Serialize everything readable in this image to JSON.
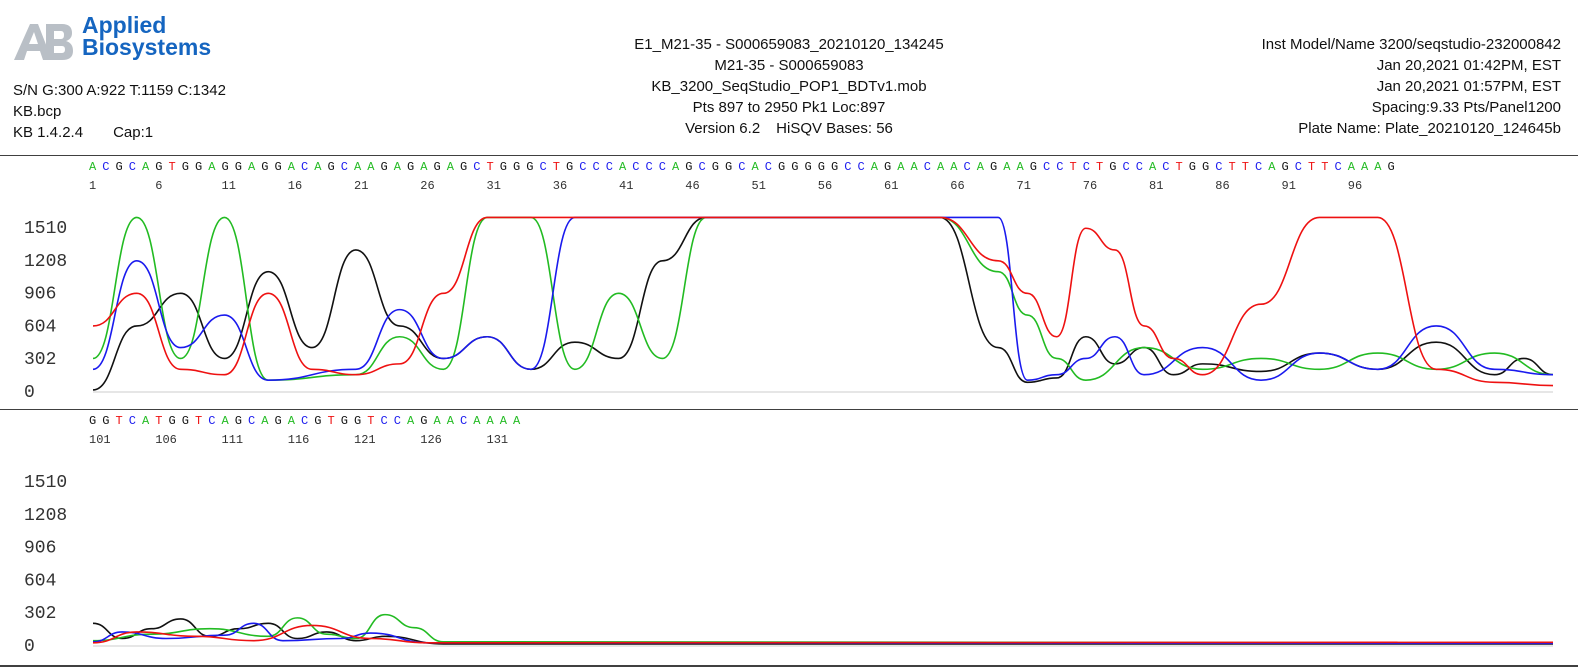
{
  "header": {
    "logo_text_1": "Applied",
    "logo_text_2": "Biosystems",
    "brand_color": "#1565c0",
    "left": {
      "counts": "S/N G:300 A:922 T:1159 C:1342",
      "file": "KB.bcp",
      "kb_version": "KB 1.4.2.4",
      "cap": "Cap:1"
    },
    "center": {
      "line1": "E1_M21-35 - S000659083_20210120_134245",
      "line2": "M21-35 - S000659083",
      "line3": "KB_3200_SeqStudio_POP1_BDTv1.mob",
      "line4": "Pts 897 to 2950 Pk1 Loc:897",
      "version": "Version 6.2",
      "hisqv": "HiSQV Bases: 56"
    },
    "right": {
      "line1": "Inst Model/Name 3200/seqstudio-232000842",
      "line2": "Jan 20,2021 01:42PM, EST",
      "line3": "Jan 20,2021 01:57PM, EST",
      "line4": "Spacing:9.33  Pts/Panel1200",
      "line5": "Plate Name: Plate_20210120_124645b"
    }
  },
  "chart_data": {
    "type": "line",
    "base_colors": {
      "A": "#22bb22",
      "C": "#1a1aee",
      "G": "#111111",
      "T": "#ee1111"
    },
    "y_ticks": [
      0,
      302,
      604,
      906,
      1208,
      1510
    ],
    "panels": [
      {
        "sequence": "ACGCAGTGGAGGAGGACAGCAAGAGAGAGCTGGGCTGCCCACCCAGCGGCACGGGGGCCAGAACAACAGAAGCCTCTGCCACTGGCTTCAGCTTCAAAG",
        "tick_labels": [
          "1",
          "6",
          "11",
          "16",
          "21",
          "26",
          "31",
          "36",
          "41",
          "46",
          "51",
          "56",
          "61",
          "66",
          "71",
          "76",
          "81",
          "86",
          "91",
          "96"
        ],
        "series": [
          {
            "base": "G",
            "points": [
              [
                0,
                10
              ],
              [
                3,
                600
              ],
              [
                6,
                900
              ],
              [
                9,
                300
              ],
              [
                12,
                1100
              ],
              [
                15,
                400
              ],
              [
                18,
                1300
              ],
              [
                21,
                600
              ],
              [
                24,
                300
              ],
              [
                27,
                500
              ],
              [
                30,
                200
              ],
              [
                33,
                450
              ],
              [
                36,
                300
              ],
              [
                39,
                1200
              ],
              [
                42,
                1600
              ],
              [
                45,
                1600
              ],
              [
                58,
                1600
              ],
              [
                62,
                400
              ],
              [
                64,
                80
              ],
              [
                66,
                120
              ],
              [
                68,
                500
              ],
              [
                70,
                250
              ],
              [
                72,
                400
              ],
              [
                74,
                150
              ],
              [
                76,
                250
              ],
              [
                80,
                180
              ],
              [
                84,
                350
              ],
              [
                88,
                200
              ],
              [
                92,
                450
              ],
              [
                96,
                150
              ],
              [
                98,
                300
              ],
              [
                100,
                150
              ]
            ]
          },
          {
            "base": "A",
            "points": [
              [
                0,
                300
              ],
              [
                3,
                1600
              ],
              [
                6,
                300
              ],
              [
                9,
                1600
              ],
              [
                12,
                100
              ],
              [
                18,
                150
              ],
              [
                21,
                500
              ],
              [
                24,
                200
              ],
              [
                27,
                1600
              ],
              [
                30,
                1600
              ],
              [
                33,
                200
              ],
              [
                36,
                900
              ],
              [
                39,
                300
              ],
              [
                42,
                1600
              ],
              [
                45,
                1600
              ],
              [
                58,
                1600
              ],
              [
                62,
                1100
              ],
              [
                64,
                700
              ],
              [
                66,
                300
              ],
              [
                68,
                100
              ],
              [
                72,
                400
              ],
              [
                76,
                200
              ],
              [
                80,
                300
              ],
              [
                84,
                200
              ],
              [
                88,
                350
              ],
              [
                92,
                200
              ],
              [
                96,
                350
              ],
              [
                100,
                150
              ]
            ]
          },
          {
            "base": "C",
            "points": [
              [
                0,
                200
              ],
              [
                3,
                1200
              ],
              [
                6,
                400
              ],
              [
                9,
                700
              ],
              [
                12,
                100
              ],
              [
                18,
                200
              ],
              [
                21,
                750
              ],
              [
                24,
                300
              ],
              [
                27,
                500
              ],
              [
                30,
                200
              ],
              [
                33,
                1600
              ],
              [
                36,
                1600
              ],
              [
                42,
                1600
              ],
              [
                45,
                1600
              ],
              [
                62,
                1600
              ],
              [
                64,
                100
              ],
              [
                66,
                150
              ],
              [
                68,
                300
              ],
              [
                70,
                500
              ],
              [
                72,
                150
              ],
              [
                76,
                400
              ],
              [
                80,
                100
              ],
              [
                84,
                350
              ],
              [
                88,
                200
              ],
              [
                92,
                600
              ],
              [
                96,
                200
              ],
              [
                100,
                150
              ]
            ]
          },
          {
            "base": "T",
            "points": [
              [
                0,
                600
              ],
              [
                3,
                900
              ],
              [
                6,
                200
              ],
              [
                9,
                150
              ],
              [
                12,
                900
              ],
              [
                15,
                200
              ],
              [
                18,
                150
              ],
              [
                21,
                250
              ],
              [
                24,
                900
              ],
              [
                27,
                1600
              ],
              [
                30,
                1600
              ],
              [
                36,
                1600
              ],
              [
                42,
                1600
              ],
              [
                45,
                1600
              ],
              [
                58,
                1600
              ],
              [
                62,
                1200
              ],
              [
                64,
                900
              ],
              [
                66,
                500
              ],
              [
                68,
                1500
              ],
              [
                70,
                1300
              ],
              [
                72,
                600
              ],
              [
                74,
                300
              ],
              [
                76,
                150
              ],
              [
                80,
                800
              ],
              [
                84,
                1600
              ],
              [
                88,
                1600
              ],
              [
                92,
                200
              ],
              [
                96,
                80
              ],
              [
                100,
                50
              ]
            ]
          }
        ]
      },
      {
        "sequence": "GGTCATGGTCAGCAGACGTGGTCCAGAACAAAA",
        "tick_labels": [
          "101",
          "106",
          "111",
          "116",
          "121",
          "126",
          "131"
        ],
        "series": [
          {
            "base": "G",
            "points": [
              [
                0,
                200
              ],
              [
                2,
                60
              ],
              [
                4,
                150
              ],
              [
                6,
                240
              ],
              [
                8,
                80
              ],
              [
                10,
                150
              ],
              [
                12,
                200
              ],
              [
                14,
                60
              ],
              [
                16,
                120
              ],
              [
                18,
                40
              ],
              [
                20,
                80
              ],
              [
                24,
                10
              ],
              [
                100,
                10
              ]
            ]
          },
          {
            "base": "A",
            "points": [
              [
                0,
                40
              ],
              [
                4,
                100
              ],
              [
                8,
                150
              ],
              [
                12,
                80
              ],
              [
                14,
                250
              ],
              [
                16,
                100
              ],
              [
                18,
                60
              ],
              [
                20,
                280
              ],
              [
                22,
                160
              ],
              [
                24,
                30
              ],
              [
                100,
                20
              ]
            ]
          },
          {
            "base": "C",
            "points": [
              [
                0,
                30
              ],
              [
                2,
                120
              ],
              [
                5,
                60
              ],
              [
                9,
                90
              ],
              [
                11,
                200
              ],
              [
                13,
                40
              ],
              [
                17,
                60
              ],
              [
                19,
                110
              ],
              [
                23,
                20
              ],
              [
                100,
                15
              ]
            ]
          },
          {
            "base": "T",
            "points": [
              [
                0,
                20
              ],
              [
                3,
                120
              ],
              [
                7,
                80
              ],
              [
                11,
                40
              ],
              [
                15,
                180
              ],
              [
                19,
                60
              ],
              [
                23,
                20
              ],
              [
                100,
                25
              ]
            ]
          }
        ]
      }
    ]
  }
}
